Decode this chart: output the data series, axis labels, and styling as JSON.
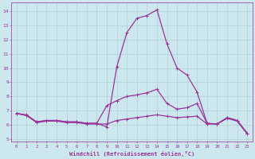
{
  "xlabel": "Windchill (Refroidissement éolien,°C)",
  "background_color": "#cce8ee",
  "line_color": "#993399",
  "grid_color": "#aacccc",
  "xlim": [
    -0.5,
    23.5
  ],
  "ylim": [
    4.8,
    14.6
  ],
  "yticks": [
    5,
    6,
    7,
    8,
    9,
    10,
    11,
    12,
    13,
    14
  ],
  "xticks": [
    0,
    1,
    2,
    3,
    4,
    5,
    6,
    7,
    8,
    9,
    10,
    11,
    12,
    13,
    14,
    15,
    16,
    17,
    18,
    19,
    20,
    21,
    22,
    23
  ],
  "series1_x": [
    0,
    1,
    2,
    3,
    4,
    5,
    6,
    7,
    8,
    9,
    10,
    11,
    12,
    13,
    14,
    15,
    16,
    17,
    18,
    19,
    20,
    21,
    22,
    23
  ],
  "series1_y": [
    6.8,
    6.7,
    6.2,
    6.3,
    6.3,
    6.2,
    6.2,
    6.1,
    6.1,
    5.85,
    10.1,
    12.5,
    13.5,
    13.7,
    14.1,
    11.7,
    10.0,
    9.5,
    8.3,
    6.1,
    6.05,
    6.5,
    6.3,
    5.4
  ],
  "series2_x": [
    0,
    1,
    2,
    3,
    4,
    5,
    6,
    7,
    8,
    9,
    10,
    11,
    12,
    13,
    14,
    15,
    16,
    17,
    18,
    19,
    20,
    21,
    22,
    23
  ],
  "series2_y": [
    6.8,
    6.65,
    6.2,
    6.3,
    6.3,
    6.2,
    6.2,
    6.1,
    6.1,
    7.35,
    7.7,
    8.0,
    8.1,
    8.25,
    8.5,
    7.5,
    7.1,
    7.2,
    7.5,
    6.1,
    6.05,
    6.5,
    6.3,
    5.4
  ],
  "series3_x": [
    0,
    1,
    2,
    3,
    4,
    5,
    6,
    7,
    8,
    9,
    10,
    11,
    12,
    13,
    14,
    15,
    16,
    17,
    18,
    19,
    20,
    21,
    22,
    23
  ],
  "series3_y": [
    6.8,
    6.65,
    6.15,
    6.25,
    6.25,
    6.15,
    6.15,
    6.05,
    6.05,
    6.05,
    6.3,
    6.4,
    6.5,
    6.6,
    6.7,
    6.6,
    6.5,
    6.55,
    6.6,
    6.05,
    6.05,
    6.45,
    6.25,
    5.35
  ]
}
